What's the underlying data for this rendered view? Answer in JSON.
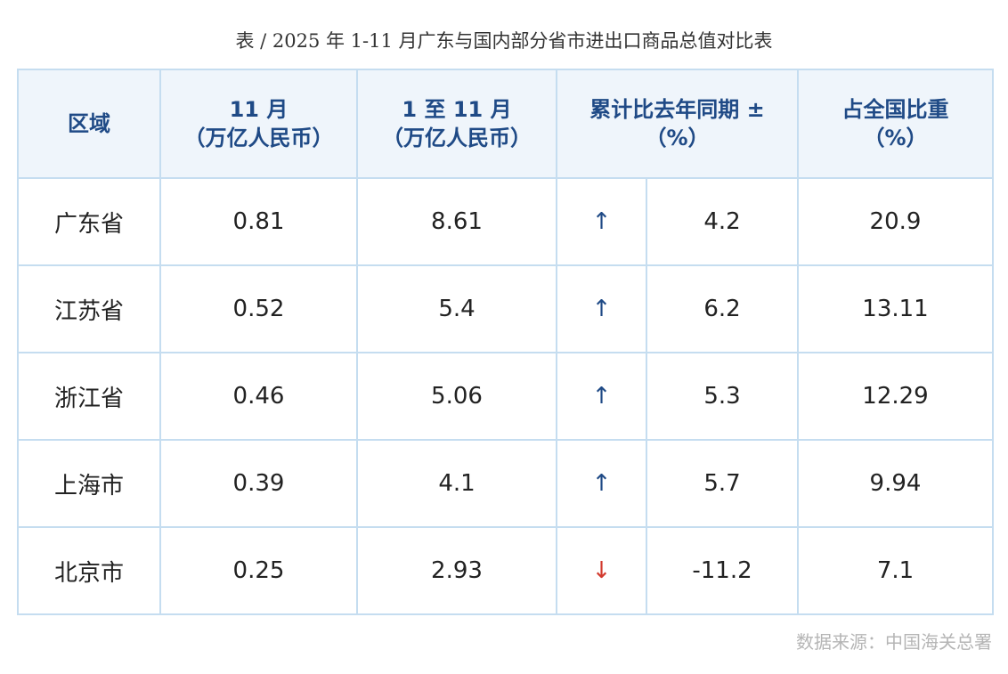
{
  "title": "表 / 2025 年 1-11 月广东与国内部分省市进出口商品总值对比表",
  "headers": {
    "region": "区域",
    "nov_line1": "11 月",
    "nov_line2": "（万亿人民币）",
    "ytd_line1": "1 至 11 月",
    "ytd_line2": "（万亿人民币）",
    "change_line1": "累计比去年同期 ±",
    "change_line2": "（%）",
    "share_line1": "占全国比重",
    "share_line2": "（%）"
  },
  "rows": [
    {
      "region": "广东省",
      "nov": "0.81",
      "ytd": "8.61",
      "arrow": "↑",
      "direction": "up",
      "change": "4.2",
      "share": "20.9"
    },
    {
      "region": "江苏省",
      "nov": "0.52",
      "ytd": "5.4",
      "arrow": "↑",
      "direction": "up",
      "change": "6.2",
      "share": "13.11"
    },
    {
      "region": "浙江省",
      "nov": "0.46",
      "ytd": "5.06",
      "arrow": "↑",
      "direction": "up",
      "change": "5.3",
      "share": "12.29"
    },
    {
      "region": "上海市",
      "nov": "0.39",
      "ytd": "4.1",
      "arrow": "↑",
      "direction": "up",
      "change": "5.7",
      "share": "9.94"
    },
    {
      "region": "北京市",
      "nov": "0.25",
      "ytd": "2.93",
      "arrow": "↓",
      "direction": "down",
      "change": "-11.2",
      "share": "7.1"
    }
  ],
  "colors": {
    "header_text": "#1f4a86",
    "header_bg": "#eff5fb",
    "border": "#c5ddf0",
    "arrow_up": "#1f4a86",
    "arrow_down": "#d23a2e"
  },
  "source": "数据来源：中国海关总署"
}
